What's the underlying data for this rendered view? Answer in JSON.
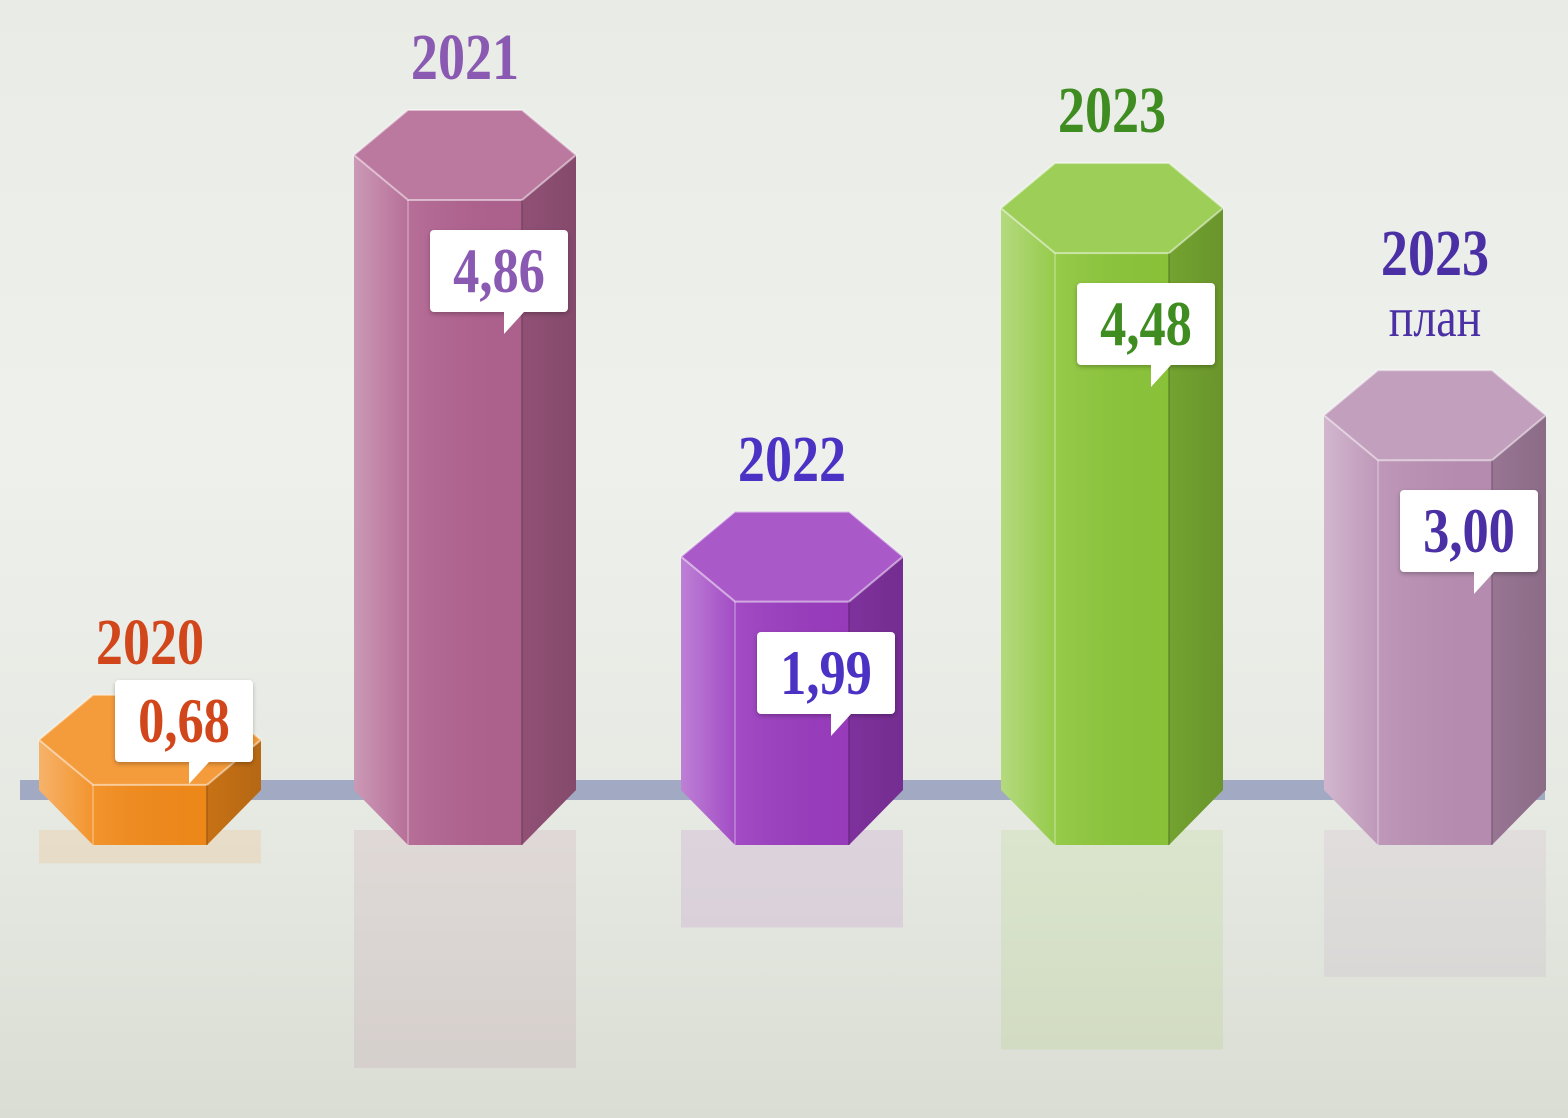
{
  "chart_data": {
    "type": "bar",
    "categories": [
      "2020",
      "2021",
      "2022",
      "2023",
      "2023 план"
    ],
    "values": [
      0.68,
      4.86,
      1.99,
      4.48,
      3.0
    ],
    "value_labels": [
      "0,68",
      "4,86",
      "1,99",
      "4,48",
      "3,00"
    ],
    "colors": [
      "#f28a1a",
      "#b0628f",
      "#9a3cbf",
      "#8cc63a",
      "#b98fb3"
    ],
    "label_colors": [
      "#d2461c",
      "#8a5ab2",
      "#4b32c4",
      "#3f8c20",
      "#4a2fa5"
    ]
  }
}
